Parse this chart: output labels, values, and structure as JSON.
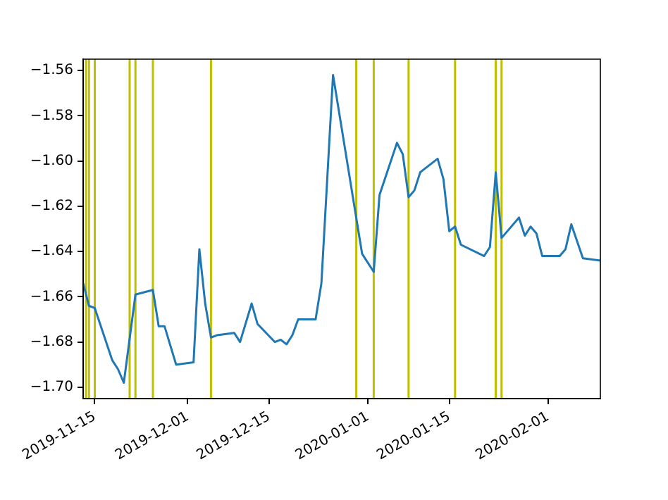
{
  "chart_data": {
    "type": "line",
    "x": [
      "2019-11-13",
      "2019-11-14",
      "2019-11-15",
      "2019-11-18",
      "2019-11-19",
      "2019-11-20",
      "2019-11-22",
      "2019-11-25",
      "2019-11-26",
      "2019-11-27",
      "2019-11-29",
      "2019-12-02",
      "2019-12-03",
      "2019-12-04",
      "2019-12-05",
      "2019-12-06",
      "2019-12-09",
      "2019-12-10",
      "2019-12-12",
      "2019-12-13",
      "2019-12-16",
      "2019-12-17",
      "2019-12-18",
      "2019-12-19",
      "2019-12-20",
      "2019-12-23",
      "2019-12-24",
      "2019-12-26",
      "2019-12-31",
      "2020-01-02",
      "2020-01-03",
      "2020-01-06",
      "2020-01-07",
      "2020-01-08",
      "2020-01-09",
      "2020-01-10",
      "2020-01-13",
      "2020-01-14",
      "2020-01-15",
      "2020-01-16",
      "2020-01-17",
      "2020-01-21",
      "2020-01-22",
      "2020-01-23",
      "2020-01-24",
      "2020-01-27",
      "2020-01-28",
      "2020-01-29",
      "2020-01-30",
      "2020-01-31",
      "2020-02-03",
      "2020-02-04",
      "2020-02-05",
      "2020-02-07",
      "2020-02-10"
    ],
    "series": [
      {
        "color": "#1f77b4",
        "values": [
          -1.654,
          -1.664,
          -1.665,
          -1.688,
          -1.692,
          -1.698,
          -1.659,
          -1.657,
          -1.673,
          -1.673,
          -1.69,
          -1.689,
          -1.639,
          -1.663,
          -1.678,
          -1.677,
          -1.676,
          -1.68,
          -1.663,
          -1.672,
          -1.68,
          -1.679,
          -1.681,
          -1.677,
          -1.67,
          -1.67,
          -1.654,
          -1.562,
          -1.641,
          -1.649,
          -1.615,
          -1.592,
          -1.597,
          -1.616,
          -1.613,
          -1.605,
          -1.599,
          -1.608,
          -1.631,
          -1.629,
          -1.637,
          -1.642,
          -1.638,
          -1.605,
          -1.634,
          -1.625,
          -1.633,
          -1.629,
          -1.632,
          -1.642,
          -1.642,
          -1.639,
          -1.628,
          -1.643,
          -1.644
        ]
      }
    ],
    "xlim": [
      "2019-11-13",
      "2020-02-10"
    ],
    "xticks": [
      "2019-11-15",
      "2019-12-01",
      "2019-12-15",
      "2020-01-01",
      "2020-01-15",
      "2020-02-01"
    ],
    "ylim": [
      -1.705,
      -1.555
    ],
    "yticks": [
      {
        "value": -1.56,
        "label": "−1.56"
      },
      {
        "value": -1.58,
        "label": "−1.58"
      },
      {
        "value": -1.6,
        "label": "−1.60"
      },
      {
        "value": -1.62,
        "label": "−1.62"
      },
      {
        "value": -1.64,
        "label": "−1.64"
      },
      {
        "value": -1.66,
        "label": "−1.66"
      },
      {
        "value": -1.68,
        "label": "−1.68"
      },
      {
        "value": -1.7,
        "label": "−1.70"
      }
    ],
    "ref_lines": [
      {
        "axis": "x",
        "value": "2019-11-13T12:00",
        "color": "#bfbf00"
      },
      {
        "axis": "x",
        "value": "2019-11-14",
        "color": "#bfbf00"
      },
      {
        "axis": "x",
        "value": "2019-11-15",
        "color": "#bfbf00"
      },
      {
        "axis": "x",
        "value": "2019-11-21",
        "color": "#bfbf00"
      },
      {
        "axis": "x",
        "value": "2019-11-22",
        "color": "#bfbf00"
      },
      {
        "axis": "x",
        "value": "2019-11-25",
        "color": "#bfbf00"
      },
      {
        "axis": "x",
        "value": "2019-12-05",
        "color": "#bfbf00"
      },
      {
        "axis": "x",
        "value": "2019-12-30",
        "color": "#bfbf00"
      },
      {
        "axis": "x",
        "value": "2020-01-02",
        "color": "#bfbf00"
      },
      {
        "axis": "x",
        "value": "2020-01-08",
        "color": "#bfbf00"
      },
      {
        "axis": "x",
        "value": "2020-01-16",
        "color": "#bfbf00"
      },
      {
        "axis": "x",
        "value": "2020-01-23",
        "color": "#bfbf00"
      },
      {
        "axis": "x",
        "value": "2020-01-24",
        "color": "#bfbf00"
      }
    ],
    "grid": false,
    "legend": false,
    "marker": "none",
    "line_style": "solid"
  }
}
